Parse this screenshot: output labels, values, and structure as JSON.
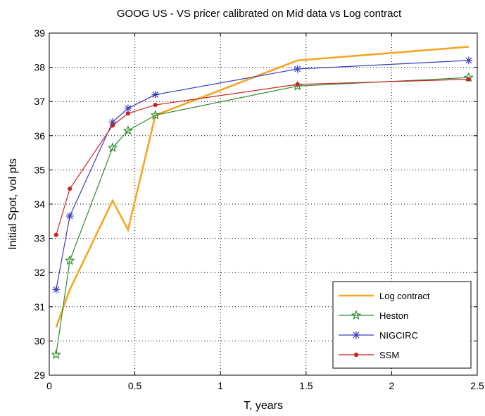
{
  "chart_data": {
    "type": "line",
    "title": "GOOG US  - VS pricer calibrated on Mid data vs Log contract",
    "xlabel": "T, years",
    "ylabel": "Initial Spot, vol pts",
    "xlim": [
      0,
      2.5
    ],
    "ylim": [
      29,
      39
    ],
    "xticks": [
      "0",
      "0.5",
      "1",
      "1.5",
      "2",
      "2.5"
    ],
    "yticks": [
      "29",
      "30",
      "31",
      "32",
      "33",
      "34",
      "35",
      "36",
      "37",
      "38",
      "39"
    ],
    "grid": true,
    "legend_position": "bottom-right",
    "series": [
      {
        "name": "Log contract",
        "color": "#f5a623",
        "marker": "none",
        "x": [
          0.04,
          0.12,
          0.37,
          0.46,
          0.62,
          1.45,
          2.45
        ],
        "y": [
          30.4,
          31.5,
          34.1,
          33.25,
          36.6,
          38.2,
          38.6
        ]
      },
      {
        "name": "Heston",
        "color": "#2e8b2e",
        "marker": "star",
        "x": [
          0.04,
          0.12,
          0.37,
          0.46,
          0.62,
          1.45,
          2.45
        ],
        "y": [
          29.6,
          32.35,
          35.65,
          36.15,
          36.6,
          37.45,
          37.7
        ]
      },
      {
        "name": "NIGCIRC",
        "color": "#3b3bbf",
        "marker": "asterisk",
        "x": [
          0.04,
          0.12,
          0.37,
          0.46,
          0.62,
          1.45,
          2.45
        ],
        "y": [
          31.5,
          33.65,
          36.4,
          36.8,
          37.2,
          37.95,
          38.2
        ]
      },
      {
        "name": "SSM",
        "color": "#cc2222",
        "marker": "dot",
        "x": [
          0.04,
          0.12,
          0.37,
          0.46,
          0.62,
          1.45,
          2.45
        ],
        "y": [
          33.1,
          34.45,
          36.3,
          36.65,
          36.9,
          37.5,
          37.65
        ]
      }
    ]
  }
}
